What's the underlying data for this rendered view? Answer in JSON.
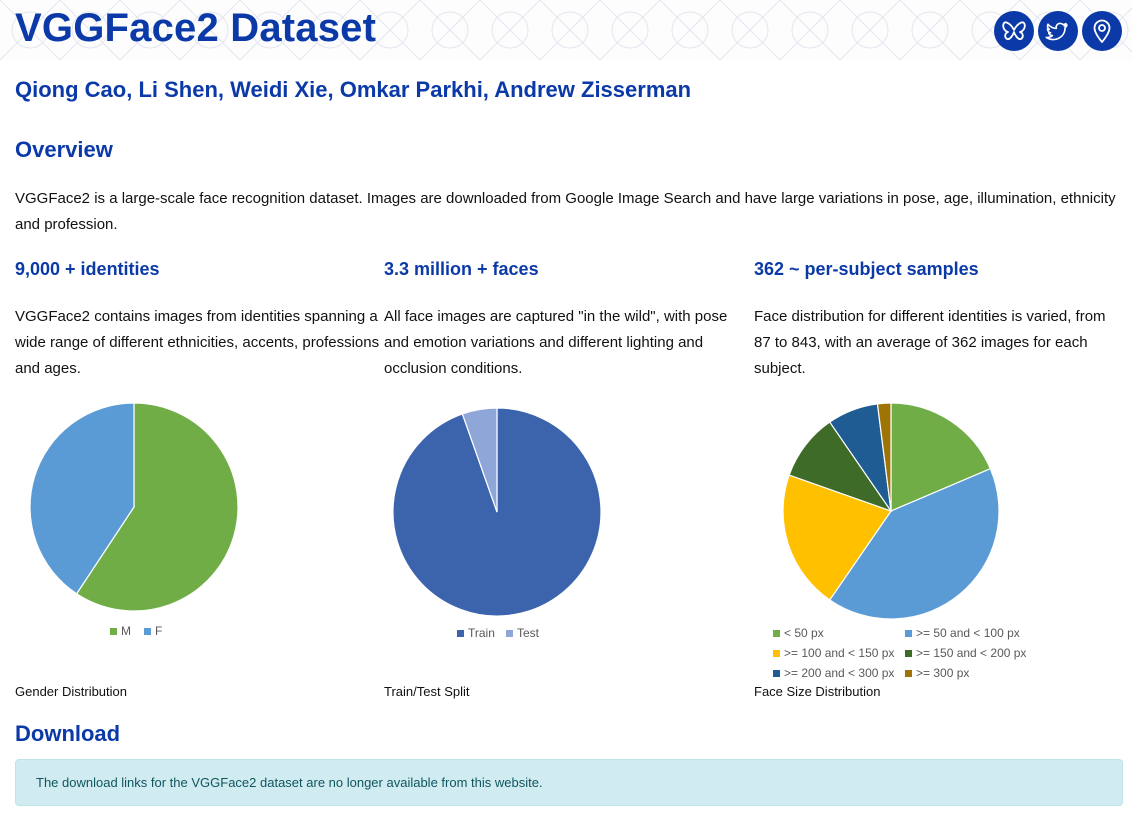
{
  "header": {
    "title": "VGGFace2 Dataset",
    "icons": [
      "butterfly-icon",
      "twitter-bird-icon",
      "map-pin-icon"
    ],
    "brand_color": "#0b3aa8"
  },
  "authors": "Qiong Cao, Li Shen, Weidi Xie, Omkar Parkhi, Andrew Zisserman",
  "overview": {
    "heading": "Overview",
    "text": "VGGFace2 is a large-scale face recognition dataset. Images are downloaded from Google Image Search and have large variations in pose, age, illumination, ethnicity and profession."
  },
  "features": [
    {
      "heading": "9,000 + identities",
      "text": "VGGFace2 contains images from identities spanning a wide range of different ethnicities, accents, professions and ages.",
      "caption": "Gender Distribution"
    },
    {
      "heading": "3.3 million + faces",
      "text": "All face images are captured \"in the wild\", with pose and emotion variations and different lighting and occlusion conditions.",
      "caption": "Train/Test Split"
    },
    {
      "heading": "362 ~ per-subject samples",
      "text": "Face distribution for different identities is varied, from 87 to 843, with an average of 362 images for each subject.",
      "caption": "Face Size Distribution"
    }
  ],
  "chart_data": [
    {
      "type": "pie",
      "categories": [
        "M",
        "F"
      ],
      "values": [
        59.3,
        40.7
      ],
      "colors": [
        "#70ad47",
        "#5b9bd5"
      ],
      "legend": "bottom"
    },
    {
      "type": "pie",
      "categories": [
        "Train",
        "Test"
      ],
      "values": [
        94.6,
        5.4
      ],
      "colors": [
        "#3c64ad",
        "#8fa7d8"
      ],
      "legend": "bottom"
    },
    {
      "type": "pie",
      "categories": [
        "< 50 px",
        ">= 50 and < 100 px",
        ">= 100 and < 150 px",
        ">= 150 and < 200 px",
        ">= 200 and < 300 px",
        ">= 300 px"
      ],
      "values": [
        18.6,
        41.0,
        20.8,
        10.0,
        7.6,
        2.0
      ],
      "draw_order": [
        0,
        1,
        2,
        3,
        4,
        5
      ],
      "colors": [
        "#70ad47",
        "#5b9bd5",
        "#ffc000",
        "#3e6b27",
        "#1f5c93",
        "#9e7404"
      ],
      "legend": "bottom"
    }
  ],
  "download": {
    "heading": "Download",
    "notice": "The download links for the VGGFace2 dataset are no longer available from this website."
  }
}
